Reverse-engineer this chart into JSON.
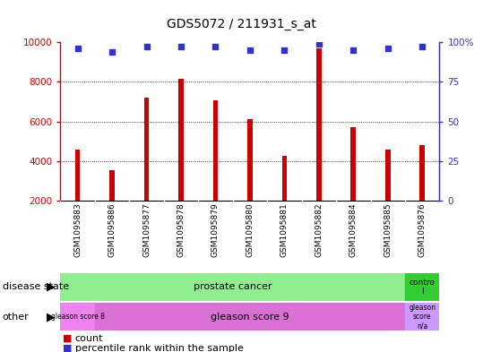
{
  "title": "GDS5072 / 211931_s_at",
  "samples": [
    "GSM1095883",
    "GSM1095886",
    "GSM1095877",
    "GSM1095878",
    "GSM1095879",
    "GSM1095880",
    "GSM1095881",
    "GSM1095882",
    "GSM1095884",
    "GSM1095885",
    "GSM1095876"
  ],
  "counts": [
    4600,
    3550,
    7200,
    8150,
    7050,
    6100,
    4250,
    9700,
    5700,
    4600,
    4800
  ],
  "percentiles": [
    96,
    94,
    97,
    97,
    97,
    95,
    95,
    99,
    95,
    96,
    97
  ],
  "ylim_left": [
    2000,
    10000
  ],
  "ylim_right": [
    0,
    100
  ],
  "yticks_left": [
    2000,
    4000,
    6000,
    8000,
    10000
  ],
  "yticks_right": [
    0,
    25,
    50,
    75,
    100
  ],
  "bar_color": "#cc0000",
  "dot_color": "#3333cc",
  "xtick_bg": "#d3d3d3",
  "disease_state_green": "#90ee90",
  "disease_state_ctrl_green": "#33cc33",
  "gleason8_color": "#ee82ee",
  "gleason9_color": "#da70d6",
  "gleasonNA_color": "#cc99ff",
  "disease_state_splits": [
    10,
    1
  ],
  "other_splits": [
    1,
    9,
    1
  ],
  "legend_count_label": "count",
  "legend_pct_label": "percentile rank within the sample"
}
